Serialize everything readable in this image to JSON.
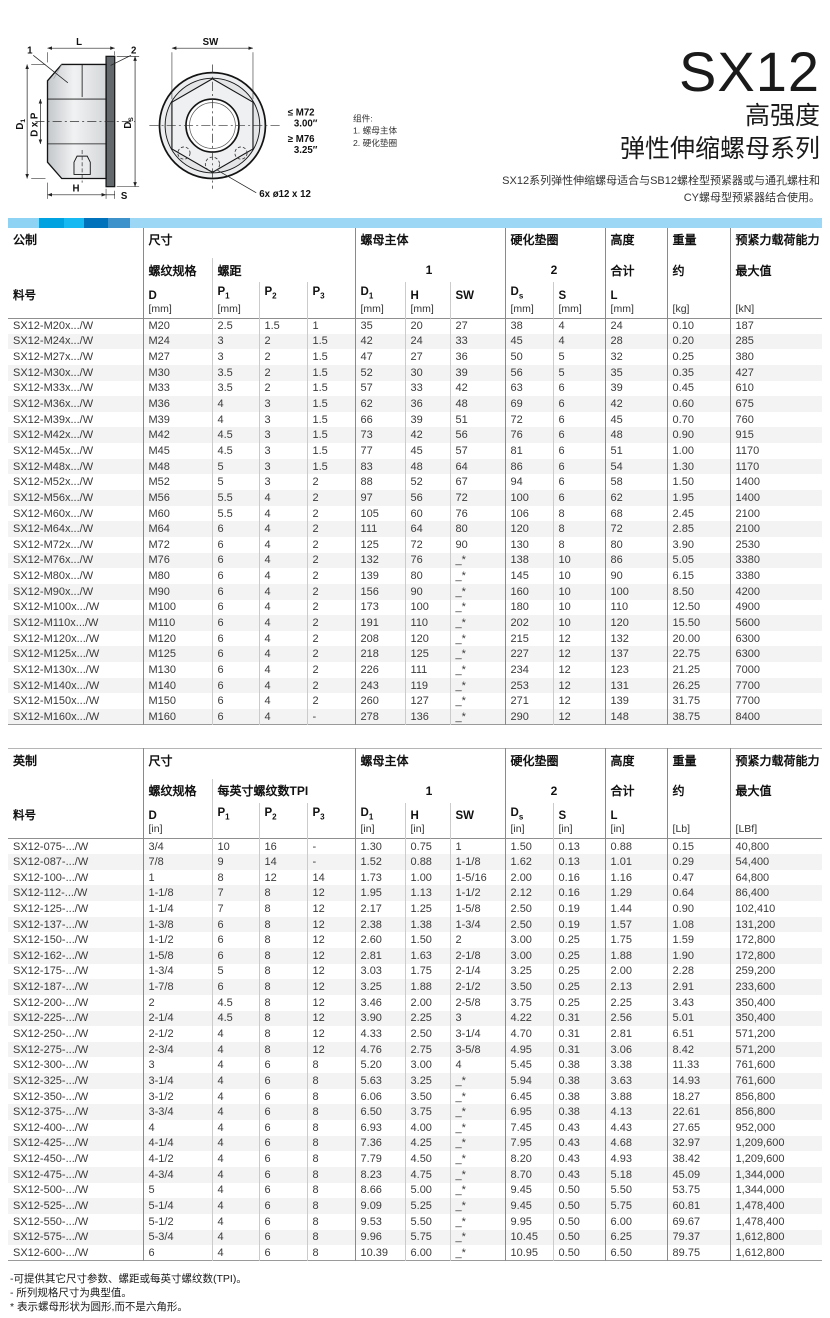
{
  "title": {
    "series": "SX12",
    "sub1": "高强度",
    "sub2": "弹性伸缩螺母系列",
    "desc_line1": "SX12系列弹性伸缩螺母适合与SB12螺栓型预紧器或与通孔螺柱和",
    "desc_line2": "CY螺母型预紧器结合使用。"
  },
  "colors": {
    "accent_segments": [
      "#8ed3f4",
      "#00a3e0",
      "#16b9f2",
      "#0072bc",
      "#3d92cc",
      "#9cd8f6"
    ],
    "row_stripe": "#f3f3f3"
  },
  "diagram": {
    "dim_L": "L",
    "dim_SW": "SW",
    "dim_D1": "D",
    "dim_D1_sub": "1",
    "dim_DxP": "D x P",
    "dim_Ds": "D",
    "dim_Ds_sub": "S",
    "dim_H": "H",
    "dim_S": "S",
    "callout_1": "1",
    "callout_2": "2",
    "thread_le": "≤ M72",
    "thread_le_size": "3.00″",
    "thread_ge": "≥ M76",
    "thread_ge_size": "3.25″",
    "drill_note": "6x ø12 x 12",
    "parts_title": "组件:",
    "part_1": "1. 螺母主体",
    "part_2": "2. 硬化垫圈"
  },
  "metric": {
    "label": "公制",
    "header": {
      "size": "尺寸",
      "thread_spec": "螺纹规格",
      "pitch": "螺距",
      "nut_body": "螺母主体",
      "nut_body_num": "1",
      "washer": "硬化垫圈",
      "washer_num": "2",
      "height": "高度",
      "height_sub": "合计",
      "weight": "重量",
      "weight_sub": "约",
      "preload": "预紧力载荷能力",
      "preload_sub": "最大值",
      "part_no": "料号"
    },
    "h3": [
      {
        "sym": "料号",
        "cls": "first"
      },
      {
        "sym": "D",
        "unit": "[mm]",
        "cls": "gb"
      },
      {
        "sym": "P",
        "sub": "1",
        "unit": "[mm]"
      },
      {
        "sym": "P",
        "sub": "2"
      },
      {
        "sym": "P",
        "sub": "3"
      },
      {
        "sym": "D",
        "sub": "1",
        "unit": "[mm]",
        "cls": "gb"
      },
      {
        "sym": "H",
        "unit": "[mm]"
      },
      {
        "sym": "SW"
      },
      {
        "sym": "D",
        "sub": "s",
        "unit": "[mm]",
        "cls": "gb"
      },
      {
        "sym": "S",
        "unit": "[mm]"
      },
      {
        "sym": "L",
        "unit": "[mm]",
        "cls": "gb"
      },
      {
        "unit": "[kg]",
        "cls": "gb"
      },
      {
        "unit": "[kN]",
        "cls": "gb"
      }
    ],
    "col_classes": [
      "first",
      "gb",
      "lb",
      "lb",
      "lb",
      "gb",
      "lb",
      "lb",
      "gb",
      "lb",
      "gb",
      "gb",
      "gb"
    ],
    "rows": [
      [
        "SX12-M20x.../W",
        "M20",
        "2.5",
        "1.5",
        "1",
        "35",
        "20",
        "27",
        "38",
        "4",
        "24",
        "0.10",
        "187"
      ],
      [
        "SX12-M24x.../W",
        "M24",
        "3",
        "2",
        "1.5",
        "42",
        "24",
        "33",
        "45",
        "4",
        "28",
        "0.20",
        "285"
      ],
      [
        "SX12-M27x.../W",
        "M27",
        "3",
        "2",
        "1.5",
        "47",
        "27",
        "36",
        "50",
        "5",
        "32",
        "0.25",
        "380"
      ],
      [
        "SX12-M30x.../W",
        "M30",
        "3.5",
        "2",
        "1.5",
        "52",
        "30",
        "39",
        "56",
        "5",
        "35",
        "0.35",
        "427"
      ],
      [
        "SX12-M33x.../W",
        "M33",
        "3.5",
        "2",
        "1.5",
        "57",
        "33",
        "42",
        "63",
        "6",
        "39",
        "0.45",
        "610"
      ],
      [
        "SX12-M36x.../W",
        "M36",
        "4",
        "3",
        "1.5",
        "62",
        "36",
        "48",
        "69",
        "6",
        "42",
        "0.60",
        "675"
      ],
      [
        "SX12-M39x.../W",
        "M39",
        "4",
        "3",
        "1.5",
        "66",
        "39",
        "51",
        "72",
        "6",
        "45",
        "0.70",
        "760"
      ],
      [
        "SX12-M42x.../W",
        "M42",
        "4.5",
        "3",
        "1.5",
        "73",
        "42",
        "56",
        "76",
        "6",
        "48",
        "0.90",
        "915"
      ],
      [
        "SX12-M45x.../W",
        "M45",
        "4.5",
        "3",
        "1.5",
        "77",
        "45",
        "57",
        "81",
        "6",
        "51",
        "1.00",
        "1170"
      ],
      [
        "SX12-M48x.../W",
        "M48",
        "5",
        "3",
        "1.5",
        "83",
        "48",
        "64",
        "86",
        "6",
        "54",
        "1.30",
        "1170"
      ],
      [
        "SX12-M52x.../W",
        "M52",
        "5",
        "3",
        "2",
        "88",
        "52",
        "67",
        "94",
        "6",
        "58",
        "1.50",
        "1400"
      ],
      [
        "SX12-M56x.../W",
        "M56",
        "5.5",
        "4",
        "2",
        "97",
        "56",
        "72",
        "100",
        "6",
        "62",
        "1.95",
        "1400"
      ],
      [
        "SX12-M60x.../W",
        "M60",
        "5.5",
        "4",
        "2",
        "105",
        "60",
        "76",
        "106",
        "8",
        "68",
        "2.45",
        "2100"
      ],
      [
        "SX12-M64x.../W",
        "M64",
        "6",
        "4",
        "2",
        "111",
        "64",
        "80",
        "120",
        "8",
        "72",
        "2.85",
        "2100"
      ],
      [
        "SX12-M72x.../W",
        "M72",
        "6",
        "4",
        "2",
        "125",
        "72",
        "90",
        "130",
        "8",
        "80",
        "3.90",
        "2530"
      ],
      [
        "SX12-M76x.../W",
        "M76",
        "6",
        "4",
        "2",
        "132",
        "76",
        "_*",
        "138",
        "10",
        "86",
        "5.05",
        "3380"
      ],
      [
        "SX12-M80x.../W",
        "M80",
        "6",
        "4",
        "2",
        "139",
        "80",
        "_*",
        "145",
        "10",
        "90",
        "6.15",
        "3380"
      ],
      [
        "SX12-M90x.../W",
        "M90",
        "6",
        "4",
        "2",
        "156",
        "90",
        "_*",
        "160",
        "10",
        "100",
        "8.50",
        "4200"
      ],
      [
        "SX12-M100x.../W",
        "M100",
        "6",
        "4",
        "2",
        "173",
        "100",
        "_*",
        "180",
        "10",
        "110",
        "12.50",
        "4900"
      ],
      [
        "SX12-M110x.../W",
        "M110",
        "6",
        "4",
        "2",
        "191",
        "110",
        "_*",
        "202",
        "10",
        "120",
        "15.50",
        "5600"
      ],
      [
        "SX12-M120x.../W",
        "M120",
        "6",
        "4",
        "2",
        "208",
        "120",
        "_*",
        "215",
        "12",
        "132",
        "20.00",
        "6300"
      ],
      [
        "SX12-M125x.../W",
        "M125",
        "6",
        "4",
        "2",
        "218",
        "125",
        "_*",
        "227",
        "12",
        "137",
        "22.75",
        "6300"
      ],
      [
        "SX12-M130x.../W",
        "M130",
        "6",
        "4",
        "2",
        "226",
        "111",
        "_*",
        "234",
        "12",
        "123",
        "21.25",
        "7000"
      ],
      [
        "SX12-M140x.../W",
        "M140",
        "6",
        "4",
        "2",
        "243",
        "119",
        "_*",
        "253",
        "12",
        "131",
        "26.25",
        "7700"
      ],
      [
        "SX12-M150x.../W",
        "M150",
        "6",
        "4",
        "2",
        "260",
        "127",
        "_*",
        "271",
        "12",
        "139",
        "31.75",
        "7700"
      ],
      [
        "SX12-M160x.../W",
        "M160",
        "6",
        "4",
        "-",
        "278",
        "136",
        "_*",
        "290",
        "12",
        "148",
        "38.75",
        "8400"
      ]
    ]
  },
  "imperial": {
    "label": "英制",
    "header": {
      "size": "尺寸",
      "thread_spec": "螺纹规格",
      "pitch": "每英寸螺纹数TPI",
      "nut_body": "螺母主体",
      "nut_body_num": "1",
      "washer": "硬化垫圈",
      "washer_num": "2",
      "height": "高度",
      "height_sub": "合计",
      "weight": "重量",
      "weight_sub": "约",
      "preload": "预紧力载荷能力",
      "preload_sub": "最大值",
      "part_no": "料号"
    },
    "h3": [
      {
        "sym": "料号",
        "cls": "first"
      },
      {
        "sym": "D",
        "unit": "[in]",
        "cls": "gb"
      },
      {
        "sym": "P",
        "sub": "1"
      },
      {
        "sym": "P",
        "sub": "2"
      },
      {
        "sym": "P",
        "sub": "3"
      },
      {
        "sym": "D",
        "sub": "1",
        "unit": "[in]",
        "cls": "gb"
      },
      {
        "sym": "H",
        "unit": "[in]"
      },
      {
        "sym": "SW"
      },
      {
        "sym": "D",
        "sub": "s",
        "unit": "[in]",
        "cls": "gb"
      },
      {
        "sym": "S",
        "unit": "[in]"
      },
      {
        "sym": "L",
        "unit": "[in]",
        "cls": "gb"
      },
      {
        "unit": "[Lb]",
        "cls": "gb"
      },
      {
        "unit": "[LBf]",
        "cls": "gb"
      }
    ],
    "col_classes": [
      "first",
      "gb",
      "lb",
      "lb",
      "lb",
      "gb",
      "lb",
      "lb",
      "gb",
      "lb",
      "gb",
      "gb",
      "gb"
    ],
    "rows": [
      [
        "SX12-075-.../W",
        "3/4",
        "10",
        "16",
        "-",
        "1.30",
        "0.75",
        "1",
        "1.50",
        "0.13",
        "0.88",
        "0.15",
        "40,800"
      ],
      [
        "SX12-087-.../W",
        "7/8",
        "9",
        "14",
        "-",
        "1.52",
        "0.88",
        "1-1/8",
        "1.62",
        "0.13",
        "1.01",
        "0.29",
        "54,400"
      ],
      [
        "SX12-100-.../W",
        "1",
        "8",
        "12",
        "14",
        "1.73",
        "1.00",
        "1-5/16",
        "2.00",
        "0.16",
        "1.16",
        "0.47",
        "64,800"
      ],
      [
        "SX12-112-.../W",
        "1-1/8",
        "7",
        "8",
        "12",
        "1.95",
        "1.13",
        "1-1/2",
        "2.12",
        "0.16",
        "1.29",
        "0.64",
        "86,400"
      ],
      [
        "SX12-125-.../W",
        "1-1/4",
        "7",
        "8",
        "12",
        "2.17",
        "1.25",
        "1-5/8",
        "2.50",
        "0.19",
        "1.44",
        "0.90",
        "102,410"
      ],
      [
        "SX12-137-.../W",
        "1-3/8",
        "6",
        "8",
        "12",
        "2.38",
        "1.38",
        "1-3/4",
        "2.50",
        "0.19",
        "1.57",
        "1.08",
        "131,200"
      ],
      [
        "SX12-150-.../W",
        "1-1/2",
        "6",
        "8",
        "12",
        "2.60",
        "1.50",
        "2",
        "3.00",
        "0.25",
        "1.75",
        "1.59",
        "172,800"
      ],
      [
        "SX12-162-.../W",
        "1-5/8",
        "6",
        "8",
        "12",
        "2.81",
        "1.63",
        "2-1/8",
        "3.00",
        "0.25",
        "1.88",
        "1.90",
        "172,800"
      ],
      [
        "SX12-175-.../W",
        "1-3/4",
        "5",
        "8",
        "12",
        "3.03",
        "1.75",
        "2-1/4",
        "3.25",
        "0.25",
        "2.00",
        "2.28",
        "259,200"
      ],
      [
        "SX12-187-.../W",
        "1-7/8",
        "6",
        "8",
        "12",
        "3.25",
        "1.88",
        "2-1/2",
        "3.50",
        "0.25",
        "2.13",
        "2.91",
        "233,600"
      ],
      [
        "SX12-200-.../W",
        "2",
        "4.5",
        "8",
        "12",
        "3.46",
        "2.00",
        "2-5/8",
        "3.75",
        "0.25",
        "2.25",
        "3.43",
        "350,400"
      ],
      [
        "SX12-225-.../W",
        "2-1/4",
        "4.5",
        "8",
        "12",
        "3.90",
        "2.25",
        "3",
        "4.22",
        "0.31",
        "2.56",
        "5.01",
        "350,400"
      ],
      [
        "SX12-250-.../W",
        "2-1/2",
        "4",
        "8",
        "12",
        "4.33",
        "2.50",
        "3-1/4",
        "4.70",
        "0.31",
        "2.81",
        "6.51",
        "571,200"
      ],
      [
        "SX12-275-.../W",
        "2-3/4",
        "4",
        "8",
        "12",
        "4.76",
        "2.75",
        "3-5/8",
        "4.95",
        "0.31",
        "3.06",
        "8.42",
        "571,200"
      ],
      [
        "SX12-300-.../W",
        "3",
        "4",
        "6",
        "8",
        "5.20",
        "3.00",
        "4",
        "5.45",
        "0.38",
        "3.38",
        "11.33",
        "761,600"
      ],
      [
        "SX12-325-.../W",
        "3-1/4",
        "4",
        "6",
        "8",
        "5.63",
        "3.25",
        "_*",
        "5.94",
        "0.38",
        "3.63",
        "14.93",
        "761,600"
      ],
      [
        "SX12-350-.../W",
        "3-1/2",
        "4",
        "6",
        "8",
        "6.06",
        "3.50",
        "_*",
        "6.45",
        "0.38",
        "3.88",
        "18.27",
        "856,800"
      ],
      [
        "SX12-375-.../W",
        "3-3/4",
        "4",
        "6",
        "8",
        "6.50",
        "3.75",
        "_*",
        "6.95",
        "0.38",
        "4.13",
        "22.61",
        "856,800"
      ],
      [
        "SX12-400-.../W",
        "4",
        "4",
        "6",
        "8",
        "6.93",
        "4.00",
        "_*",
        "7.45",
        "0.43",
        "4.43",
        "27.65",
        "952,000"
      ],
      [
        "SX12-425-.../W",
        "4-1/4",
        "4",
        "6",
        "8",
        "7.36",
        "4.25",
        "_*",
        "7.95",
        "0.43",
        "4.68",
        "32.97",
        "1,209,600"
      ],
      [
        "SX12-450-.../W",
        "4-1/2",
        "4",
        "6",
        "8",
        "7.79",
        "4.50",
        "_*",
        "8.20",
        "0.43",
        "4.93",
        "38.42",
        "1,209,600"
      ],
      [
        "SX12-475-.../W",
        "4-3/4",
        "4",
        "6",
        "8",
        "8.23",
        "4.75",
        "_*",
        "8.70",
        "0.43",
        "5.18",
        "45.09",
        "1,344,000"
      ],
      [
        "SX12-500-.../W",
        "5",
        "4",
        "6",
        "8",
        "8.66",
        "5.00",
        "_*",
        "9.45",
        "0.50",
        "5.50",
        "53.75",
        "1,344,000"
      ],
      [
        "SX12-525-.../W",
        "5-1/4",
        "4",
        "6",
        "8",
        "9.09",
        "5.25",
        "_*",
        "9.45",
        "0.50",
        "5.75",
        "60.81",
        "1,478,400"
      ],
      [
        "SX12-550-.../W",
        "5-1/2",
        "4",
        "6",
        "8",
        "9.53",
        "5.50",
        "_*",
        "9.95",
        "0.50",
        "6.00",
        "69.67",
        "1,478,400"
      ],
      [
        "SX12-575-.../W",
        "5-3/4",
        "4",
        "6",
        "8",
        "9.96",
        "5.75",
        "_*",
        "10.45",
        "0.50",
        "6.25",
        "79.37",
        "1,612,800"
      ],
      [
        "SX12-600-.../W",
        "6",
        "4",
        "6",
        "8",
        "10.39",
        "6.00",
        "_*",
        "10.95",
        "0.50",
        "6.50",
        "89.75",
        "1,612,800"
      ]
    ]
  },
  "footnotes": [
    "-可提供其它尺寸参数、螺距或每英寸螺纹数(TPI)。",
    "- 所列规格尺寸为典型值。",
    "* 表示螺母形状为圆形,而不是六角形。"
  ]
}
